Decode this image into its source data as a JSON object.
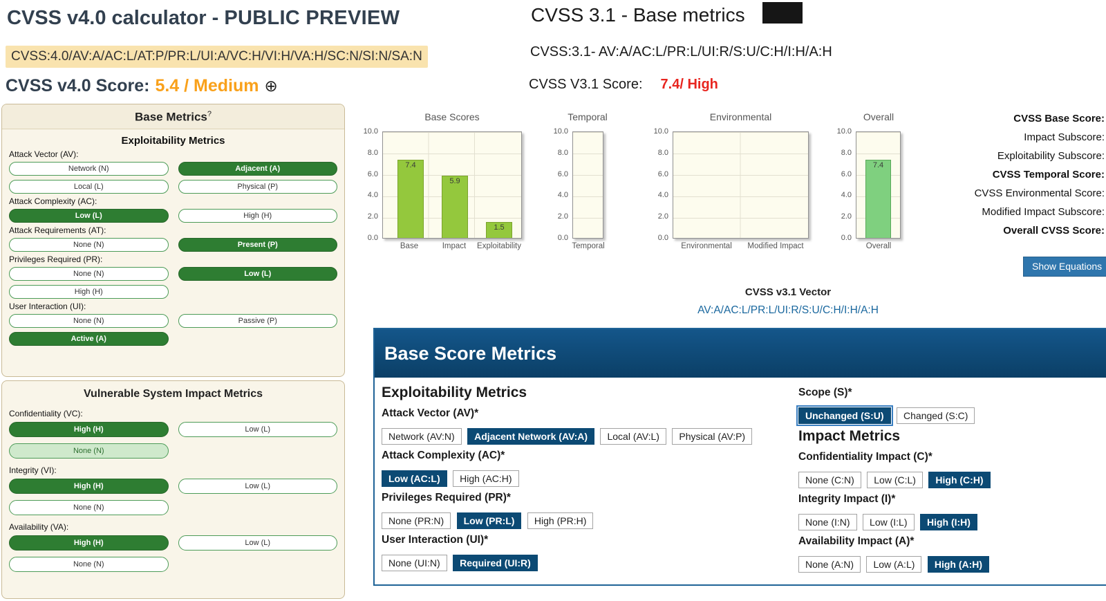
{
  "colors": {
    "v4_selected_green": "#2e7d32",
    "v4_none_light_green": "#cfe9cc",
    "v4_score_orange": "#f9a11b",
    "v4_vector_highlight": "#f9e3ae",
    "v31_selected_navy": "#0c4a74",
    "v31_header_blue": "#0d4a73",
    "v31_score_red": "#e8251f",
    "bar_green": "#94c83d",
    "overall_bar_green": "#7fd07f",
    "link_blue": "#19679e"
  },
  "v4": {
    "title_prefix": "CVSS v4.0 calculator - ",
    "title_emphasis": "PUBLIC PREVIEW",
    "vector": "CVSS:4.0/AV:A/AC:L/AT:P/PR:L/UI:A/VC:H/VI:H/VA:H/SC:N/SI:N/SA:N",
    "score_label": "CVSS v4.0 Score:",
    "score_value": "5.4 / Medium",
    "expand_icon": "⊕",
    "base_panel": {
      "title": "Base Metrics",
      "help_mark": "?",
      "subtitle": "Exploitability Metrics",
      "groups": [
        {
          "label": "Attack Vector (AV):",
          "selected": "Adjacent (A)",
          "options": [
            "Network (N)",
            "Adjacent (A)",
            "Local (L)",
            "Physical (P)"
          ]
        },
        {
          "label": "Attack Complexity (AC):",
          "selected": "Low (L)",
          "options": [
            "Low (L)",
            "High (H)"
          ]
        },
        {
          "label": "Attack Requirements (AT):",
          "selected": "Present (P)",
          "options": [
            "None (N)",
            "Present (P)"
          ]
        },
        {
          "label": "Privileges Required (PR):",
          "selected": "Low (L)",
          "options": [
            "None (N)",
            "Low (L)",
            "High (H)"
          ]
        },
        {
          "label": "User Interaction (UI):",
          "selected": "Active (A)",
          "options": [
            "None (N)",
            "Passive (P)",
            "Active (A)"
          ]
        }
      ]
    },
    "impact_panel": {
      "title": "Vulnerable System Impact Metrics",
      "groups": [
        {
          "label": "Confidentiality (VC):",
          "selected": "High (H)",
          "options": [
            "High (H)",
            "Low (L)",
            "None (N)"
          ]
        },
        {
          "label": "Integrity (VI):",
          "selected": "High (H)",
          "options": [
            "High (H)",
            "Low (L)",
            "None (N)"
          ]
        },
        {
          "label": "Availability (VA):",
          "selected": "High (H)",
          "options": [
            "High (H)",
            "Low (L)",
            "None (N)"
          ]
        }
      ]
    }
  },
  "v31": {
    "title": "CVSS 3.1 - Base metrics",
    "vector_line": "CVSS:3.1- AV:A/AC:L/PR:L/UI:R/S:U/C:H/I:H/A:H",
    "score_label": "CVSS V3.1 Score:",
    "score_value": "7.4/ High",
    "score_rows": [
      "CVSS Base Score:",
      "Impact Subscore:",
      "Exploitability Subscore:",
      "CVSS Temporal Score:",
      "CVSS Environmental Score:",
      "Modified Impact Subscore:",
      "Overall CVSS Score:"
    ],
    "show_equations_label": "Show Equations",
    "vector_heading": "CVSS v3.1 Vector",
    "vector_link": "AV:A/AC:L/PR:L/UI:R/S:U/C:H/I:H/A:H",
    "panel_title": "Base Score Metrics",
    "exploitability_heading": "Exploitability Metrics",
    "impact_heading": "Impact Metrics",
    "groups": {
      "attack_vector": {
        "label": "Attack Vector (AV)*",
        "selected": "Adjacent Network (AV:A)",
        "options": [
          "Network (AV:N)",
          "Adjacent Network (AV:A)",
          "Local (AV:L)",
          "Physical (AV:P)"
        ]
      },
      "attack_complexity": {
        "label": "Attack Complexity (AC)*",
        "selected": "Low (AC:L)",
        "options": [
          "Low (AC:L)",
          "High (AC:H)"
        ]
      },
      "privileges_required": {
        "label": "Privileges Required (PR)*",
        "selected": "Low (PR:L)",
        "options": [
          "None (PR:N)",
          "Low (PR:L)",
          "High (PR:H)"
        ]
      },
      "user_interaction": {
        "label": "User Interaction (UI)*",
        "selected": "Required (UI:R)",
        "options": [
          "None (UI:N)",
          "Required (UI:R)"
        ]
      },
      "scope": {
        "label": "Scope (S)*",
        "selected": "Unchanged (S:U)",
        "options": [
          "Unchanged (S:U)",
          "Changed (S:C)"
        ]
      },
      "confidentiality": {
        "label": "Confidentiality Impact (C)*",
        "selected": "High (C:H)",
        "options": [
          "None (C:N)",
          "Low (C:L)",
          "High (C:H)"
        ]
      },
      "integrity": {
        "label": "Integrity Impact (I)*",
        "selected": "High (I:H)",
        "options": [
          "None (I:N)",
          "Low (I:L)",
          "High (I:H)"
        ]
      },
      "availability": {
        "label": "Availability Impact (A)*",
        "selected": "High (A:H)",
        "options": [
          "None (A:N)",
          "Low (A:L)",
          "High (A:H)"
        ]
      }
    }
  },
  "charts": {
    "yticks": [
      "10.0",
      "8.0",
      "6.0",
      "4.0",
      "2.0",
      "0.0"
    ]
  },
  "chart_data": [
    {
      "type": "bar",
      "title": "Base Scores",
      "categories": [
        "Base",
        "Impact",
        "Exploitability"
      ],
      "values": [
        7.4,
        5.9,
        1.5
      ],
      "ylim": [
        0,
        10
      ],
      "grid": true,
      "bar_color": "#94c83d"
    },
    {
      "type": "bar",
      "title": "Temporal",
      "categories": [
        "Temporal"
      ],
      "values": [],
      "ylim": [
        0,
        10
      ],
      "grid": true
    },
    {
      "type": "bar",
      "title": "Environmental",
      "categories": [
        "Environmental",
        "Modified Impact"
      ],
      "values": [],
      "ylim": [
        0,
        10
      ],
      "grid": true
    },
    {
      "type": "bar",
      "title": "Overall",
      "categories": [
        "Overall"
      ],
      "values": [
        7.4
      ],
      "ylim": [
        0,
        10
      ],
      "grid": true,
      "bar_color": "#7fd07f"
    }
  ]
}
